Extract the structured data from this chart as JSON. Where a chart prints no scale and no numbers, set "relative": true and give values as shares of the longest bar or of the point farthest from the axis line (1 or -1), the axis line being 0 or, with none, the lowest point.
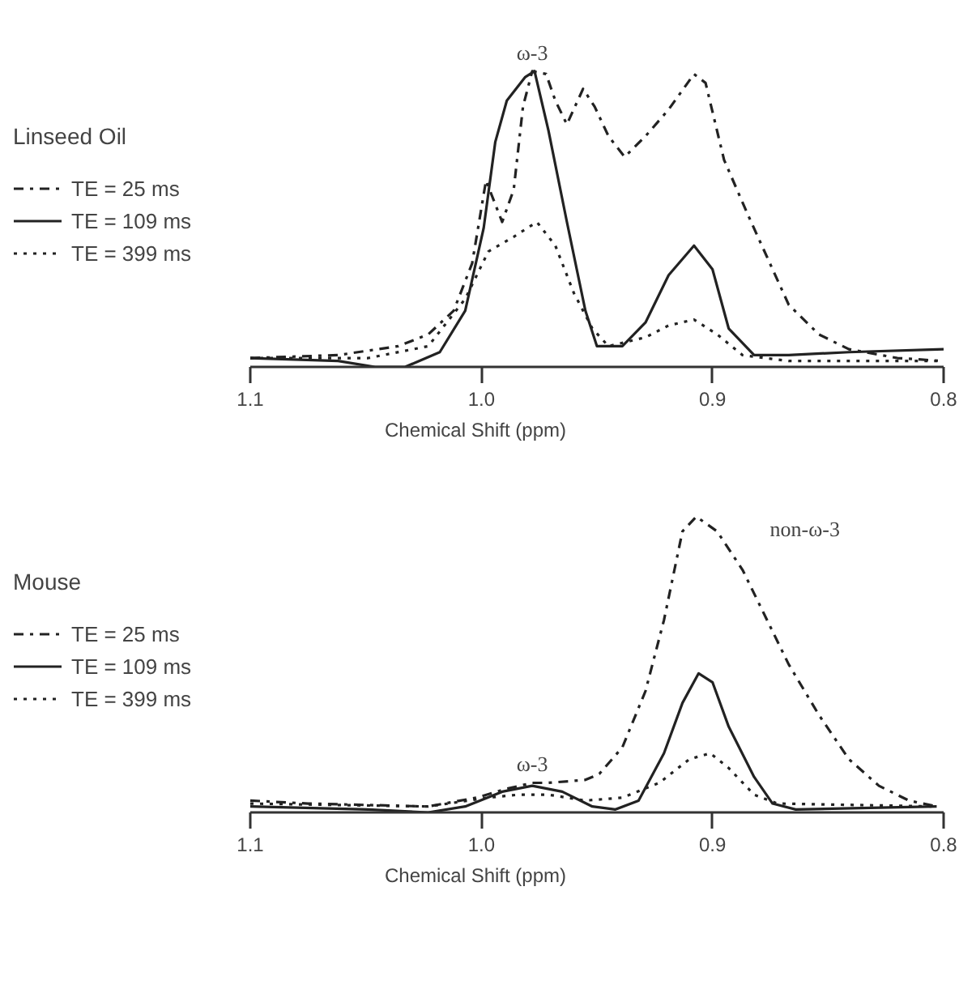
{
  "chart_data": [
    {
      "type": "line",
      "relative": true,
      "legend_title": "Linseed Oil",
      "xlabel": "Chemical Shift (ppm)",
      "xlim": [
        1.1,
        0.8
      ],
      "xticks": [
        {
          "value": 1.1,
          "label": "1.1"
        },
        {
          "value": 1.0,
          "label": "1.0"
        },
        {
          "value": 0.9,
          "label": "0.9"
        },
        {
          "value": 0.8,
          "label": "0.8"
        }
      ],
      "tick_labels": "x",
      "grid": false,
      "legend": "left",
      "marker": "none",
      "annotations": [
        {
          "text": "ω-3",
          "x": 0.978,
          "y": 1.0
        }
      ],
      "series": [
        {
          "name": "TE = 25 ms",
          "color": "#222222",
          "line_style": "dashdot",
          "x": [
            1.1,
            1.062,
            1.036,
            1.023,
            1.012,
            1.004,
            0.998,
            0.991,
            0.986,
            0.982,
            0.978,
            0.972,
            0.968,
            0.963,
            0.956,
            0.951,
            0.945,
            0.938,
            0.929,
            0.919,
            0.908,
            0.903,
            0.895,
            0.885,
            0.874,
            0.867,
            0.854,
            0.841,
            0.82,
            0.8
          ],
          "values": [
            0.03,
            0.04,
            0.07,
            0.11,
            0.19,
            0.35,
            0.63,
            0.49,
            0.6,
            0.88,
            1.0,
            0.99,
            0.9,
            0.82,
            0.94,
            0.88,
            0.78,
            0.71,
            0.78,
            0.87,
            0.99,
            0.96,
            0.7,
            0.52,
            0.33,
            0.21,
            0.11,
            0.06,
            0.03,
            0.02
          ]
        },
        {
          "name": "TE = 109 ms",
          "color": "#222222",
          "line_style": "solid",
          "x": [
            1.1,
            1.062,
            1.046,
            1.033,
            1.018,
            1.007,
            0.999,
            0.994,
            0.989,
            0.981,
            0.977,
            0.971,
            0.963,
            0.955,
            0.95,
            0.939,
            0.929,
            0.919,
            0.908,
            0.9,
            0.893,
            0.882,
            0.867,
            0.841,
            0.8
          ],
          "values": [
            0.03,
            0.02,
            0.0,
            0.0,
            0.05,
            0.19,
            0.47,
            0.76,
            0.9,
            0.98,
            1.0,
            0.8,
            0.49,
            0.19,
            0.07,
            0.07,
            0.15,
            0.31,
            0.41,
            0.33,
            0.13,
            0.04,
            0.04,
            0.05,
            0.06
          ]
        },
        {
          "name": "TE = 399 ms",
          "color": "#222222",
          "line_style": "dotted",
          "x": [
            1.1,
            1.049,
            1.023,
            1.007,
            0.997,
            0.986,
            0.976,
            0.968,
            0.96,
            0.952,
            0.945,
            0.929,
            0.919,
            0.908,
            0.898,
            0.887,
            0.867,
            0.8
          ],
          "values": [
            0.03,
            0.03,
            0.07,
            0.23,
            0.39,
            0.44,
            0.49,
            0.41,
            0.25,
            0.13,
            0.07,
            0.1,
            0.14,
            0.16,
            0.11,
            0.04,
            0.02,
            0.02
          ]
        }
      ]
    },
    {
      "type": "line",
      "relative": true,
      "legend_title": "Mouse",
      "xlabel": "Chemical Shift (ppm)",
      "xlim": [
        1.1,
        0.8
      ],
      "xticks": [
        {
          "value": 1.1,
          "label": "1.1"
        },
        {
          "value": 1.0,
          "label": "1.0"
        },
        {
          "value": 0.9,
          "label": "0.9"
        },
        {
          "value": 0.8,
          "label": "0.8"
        }
      ],
      "tick_labels": "x",
      "grid": false,
      "legend": "left",
      "marker": "none",
      "annotations": [
        {
          "text": "ω-3",
          "x": 0.978,
          "y": 0.1
        },
        "non-ω-3"
      ],
      "series": [
        {
          "name": "TE = 25 ms",
          "color": "#222222",
          "line_style": "dashdot",
          "x": [
            1.1,
            1.075,
            1.023,
            1.002,
            0.989,
            0.978,
            0.971,
            0.955,
            0.949,
            0.939,
            0.929,
            0.921,
            0.913,
            0.907,
            0.898,
            0.887,
            0.877,
            0.867,
            0.854,
            0.841,
            0.828,
            0.815,
            0.803
          ],
          "values": [
            0.04,
            0.03,
            0.02,
            0.05,
            0.08,
            0.1,
            0.1,
            0.11,
            0.13,
            0.22,
            0.41,
            0.65,
            0.95,
            1.0,
            0.95,
            0.82,
            0.66,
            0.5,
            0.33,
            0.18,
            0.09,
            0.04,
            0.02
          ]
        },
        {
          "name": "TE = 109 ms",
          "color": "#222222",
          "line_style": "solid",
          "x": [
            1.1,
            1.049,
            1.023,
            1.007,
            0.991,
            0.978,
            0.965,
            0.952,
            0.942,
            0.932,
            0.921,
            0.913,
            0.906,
            0.9,
            0.893,
            0.882,
            0.874,
            0.864,
            0.803
          ],
          "values": [
            0.02,
            0.01,
            0.0,
            0.02,
            0.07,
            0.09,
            0.07,
            0.02,
            0.01,
            0.04,
            0.2,
            0.37,
            0.47,
            0.44,
            0.29,
            0.12,
            0.03,
            0.01,
            0.02
          ]
        },
        {
          "name": "TE = 399 ms",
          "color": "#222222",
          "line_style": "dotted",
          "x": [
            1.1,
            1.023,
            0.997,
            0.984,
            0.971,
            0.955,
            0.939,
            0.923,
            0.91,
            0.901,
            0.893,
            0.882,
            0.872,
            0.803
          ],
          "values": [
            0.03,
            0.02,
            0.05,
            0.06,
            0.06,
            0.04,
            0.05,
            0.1,
            0.18,
            0.2,
            0.15,
            0.06,
            0.03,
            0.02
          ]
        }
      ]
    }
  ]
}
